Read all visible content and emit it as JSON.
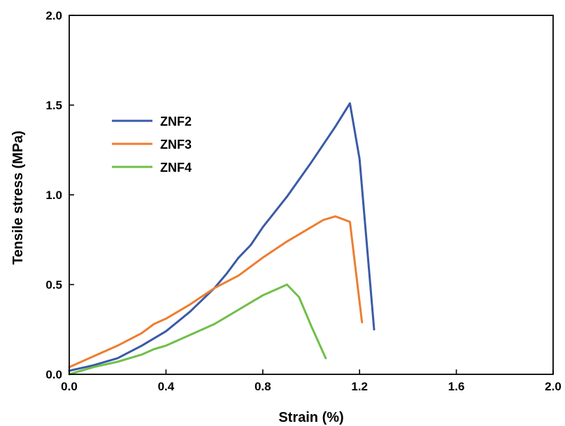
{
  "chart_data": {
    "type": "line",
    "title": "",
    "xlabel": "Strain (%)",
    "ylabel": "Tensile stress (MPa)",
    "xlim": [
      0,
      2.0
    ],
    "ylim": [
      0,
      2.0
    ],
    "x_ticks": [
      "0.0",
      "0.4",
      "0.8",
      "1.2",
      "1.6",
      "2.0"
    ],
    "y_ticks": [
      "0.0",
      "0.5",
      "1.0",
      "1.5",
      "2.0"
    ],
    "grid": false,
    "legend_position": "upper-left",
    "series": [
      {
        "name": "ZNF2",
        "color": "#3b5aa6",
        "x": [
          0.0,
          0.1,
          0.2,
          0.3,
          0.4,
          0.5,
          0.6,
          0.65,
          0.7,
          0.75,
          0.8,
          0.9,
          1.0,
          1.1,
          1.16,
          1.2,
          1.26
        ],
        "y": [
          0.02,
          0.05,
          0.09,
          0.16,
          0.24,
          0.35,
          0.48,
          0.56,
          0.65,
          0.72,
          0.82,
          0.99,
          1.18,
          1.38,
          1.51,
          1.2,
          0.25
        ]
      },
      {
        "name": "ZNF3",
        "color": "#ee7d31",
        "x": [
          0.0,
          0.1,
          0.2,
          0.3,
          0.35,
          0.4,
          0.45,
          0.5,
          0.6,
          0.7,
          0.8,
          0.9,
          1.0,
          1.05,
          1.1,
          1.16,
          1.21
        ],
        "y": [
          0.04,
          0.1,
          0.16,
          0.23,
          0.28,
          0.31,
          0.35,
          0.39,
          0.48,
          0.55,
          0.65,
          0.74,
          0.82,
          0.86,
          0.88,
          0.85,
          0.29
        ]
      },
      {
        "name": "ZNF4",
        "color": "#6fbf4a",
        "x": [
          0.0,
          0.1,
          0.2,
          0.3,
          0.35,
          0.4,
          0.5,
          0.6,
          0.65,
          0.7,
          0.75,
          0.8,
          0.85,
          0.9,
          0.95,
          1.0,
          1.06
        ],
        "y": [
          0.0,
          0.04,
          0.07,
          0.11,
          0.14,
          0.16,
          0.22,
          0.28,
          0.32,
          0.36,
          0.4,
          0.44,
          0.47,
          0.5,
          0.43,
          0.27,
          0.09
        ]
      }
    ]
  }
}
